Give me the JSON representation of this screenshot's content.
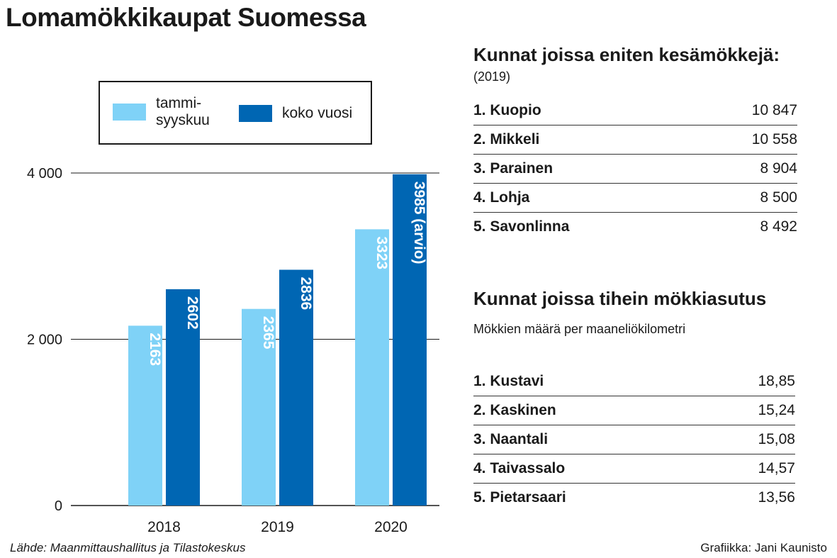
{
  "title": "Lomamökkikaupat Suomessa",
  "colors": {
    "tammi_syyskuu": "#7fd2f7",
    "koko_vuosi": "#0066b3"
  },
  "chart_data": {
    "type": "bar",
    "categories": [
      "2018",
      "2019",
      "2020"
    ],
    "series": [
      {
        "name": "tammi-syyskuu",
        "values": [
          2163,
          2365,
          3323
        ],
        "labels": [
          "2163",
          "2365",
          "3323"
        ]
      },
      {
        "name": "koko vuosi",
        "values": [
          2602,
          2836,
          3985
        ],
        "labels": [
          "2602",
          "2836",
          "3985 (arvio)"
        ]
      }
    ],
    "ylim": [
      0,
      4000
    ],
    "yticks": [
      0,
      2000,
      4000
    ],
    "ytick_labels": [
      "0",
      "2 000",
      "4 000"
    ],
    "grid": true,
    "legend": {
      "position": "top",
      "items": [
        "tammi-syyskuu",
        "koko vuosi"
      ]
    },
    "xlabel": "",
    "ylabel": ""
  },
  "legend": {
    "a_label": "tammi-syyskuu",
    "b_label": "koko vuosi"
  },
  "table1": {
    "title": "Kunnat joissa eniten kesämökkejä:",
    "subtitle": "(2019)",
    "rows": [
      {
        "name": "1. Kuopio",
        "value": "10 847"
      },
      {
        "name": "2. Mikkeli",
        "value": "10 558"
      },
      {
        "name": "3. Parainen",
        "value": "8 904"
      },
      {
        "name": "4. Lohja",
        "value": "8 500"
      },
      {
        "name": "5. Savonlinna",
        "value": "8 492"
      }
    ]
  },
  "table2": {
    "title": "Kunnat joissa tihein mökkiasutus",
    "subtitle": "Mökkien määrä per maaneliökilometri",
    "rows": [
      {
        "name": "1. Kustavi",
        "value": "18,85"
      },
      {
        "name": "2. Kaskinen",
        "value": "15,24"
      },
      {
        "name": "3. Naantali",
        "value": "15,08"
      },
      {
        "name": "4. Taivassalo",
        "value": "14,57"
      },
      {
        "name": "5. Pietarsaari",
        "value": "13,56"
      }
    ]
  },
  "source": "Lähde: Maanmittaushallitus ja Tilastokeskus",
  "credit": "Grafiikka: Jani Kaunisto"
}
